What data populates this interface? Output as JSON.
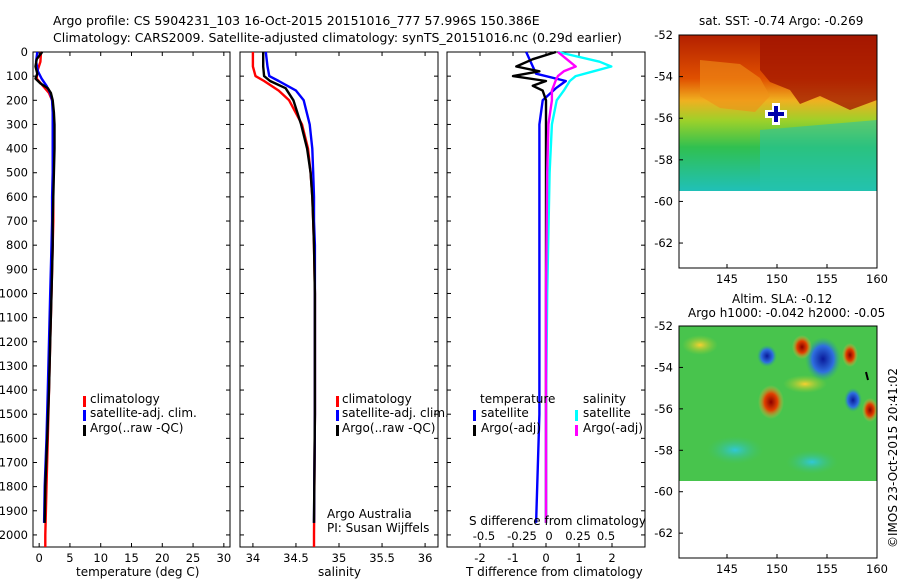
{
  "header": {
    "line1": "Argo profile: CS 5904231_103 16-Oct-2015 20151016_777 57.996S 150.386E",
    "line2": "Climatology: CARS2009. Satellite-adjusted climatology: synTS_20151016.nc (0.29d earlier)"
  },
  "colors": {
    "climatology": "#ff0000",
    "satellite": "#0000ff",
    "argo": "#000000",
    "satellite_salinity": "#00ffff",
    "argo_adj_salinity": "#ff00ff"
  },
  "depth_ticks": [
    "0",
    "100",
    "200",
    "300",
    "400",
    "500",
    "600",
    "700",
    "800",
    "900",
    "1000",
    "1100",
    "1200",
    "1300",
    "1400",
    "1500",
    "1600",
    "1700",
    "1800",
    "1900",
    "2000"
  ],
  "panels": {
    "temperature": {
      "xlabel": "temperature (deg C)",
      "xticks": [
        "0",
        "5",
        "10",
        "15",
        "20",
        "25",
        "30"
      ],
      "legend": [
        "climatology",
        "satellite-adj. clim.",
        "Argo(..raw -QC)"
      ]
    },
    "salinity": {
      "xlabel": "salinity",
      "xticks": [
        "34",
        "34.5",
        "35",
        "35.5",
        "36"
      ],
      "legend": [
        "climatology",
        "satellite-adj. clim.",
        "Argo(..raw -QC)"
      ],
      "note1": "Argo Australia",
      "note2": "PI: Susan Wijffels"
    },
    "difference": {
      "xlabel": "T difference from climatology",
      "top_label": "S difference from climatology",
      "xticks": [
        "-2",
        "-1",
        "0",
        "1",
        "2"
      ],
      "s_ticks": [
        "-0.5",
        "-0.25",
        "0",
        "0.25",
        "0.5"
      ],
      "legend_head_t": "temperature",
      "legend_head_s": "salinity",
      "legend_t": [
        "satellite",
        "Argo(-adj)"
      ],
      "legend_s": [
        "satellite",
        "Argo(-adj)"
      ]
    },
    "sst_map": {
      "title": "sat. SST: -0.74 Argo: -0.269",
      "yticks": [
        "-52",
        "-54",
        "-56",
        "-58",
        "-60",
        "-62"
      ],
      "xticks": [
        "145",
        "150",
        "155",
        "160"
      ]
    },
    "sla_map": {
      "title1": "Altim. SLA: -0.12",
      "title2": "Argo h1000: -0.042 h2000: -0.05",
      "yticks": [
        "-52",
        "-54",
        "-56",
        "-58",
        "-60",
        "-62"
      ],
      "xticks": [
        "145",
        "150",
        "155",
        "160"
      ]
    }
  },
  "watermark": "©IMOS 23-Oct-2015 20:41:02",
  "chart_data": [
    {
      "type": "line",
      "title": "",
      "xlabel": "temperature (deg C)",
      "ylabel": "",
      "xlim": [
        -1,
        31
      ],
      "ylim": [
        2050,
        0
      ],
      "series": [
        {
          "name": "climatology",
          "y": [
            0,
            40,
            80,
            110,
            140,
            170,
            200,
            250,
            300,
            400,
            500,
            600,
            700,
            800,
            1000,
            1200,
            1400,
            1600,
            1800,
            2000,
            2050
          ],
          "x": [
            0.3,
            0.2,
            -0.3,
            -0.4,
            0.6,
            1.6,
            2.1,
            2.3,
            2.4,
            2.4,
            2.3,
            2.3,
            2.3,
            2.2,
            2.0,
            1.8,
            1.6,
            1.4,
            1.2,
            1.0,
            1.0
          ]
        },
        {
          "name": "satellite-adj. clim.",
          "y": [
            0,
            40,
            80,
            110,
            140,
            170,
            200,
            250,
            300,
            400,
            500,
            600,
            700,
            800,
            1000,
            1200,
            1400,
            1600,
            1800,
            1950
          ],
          "x": [
            -0.3,
            -0.5,
            -0.2,
            0.4,
            1.2,
            1.8,
            2.1,
            2.2,
            2.2,
            2.2,
            2.2,
            2.1,
            2.1,
            2.0,
            1.8,
            1.6,
            1.4,
            1.2,
            0.9,
            0.8
          ]
        },
        {
          "name": "Argo(..raw -QC)",
          "y": [
            0,
            30,
            60,
            90,
            110,
            130,
            150,
            170,
            200,
            250,
            300,
            400,
            500,
            600,
            700,
            800,
            1000,
            1200,
            1400,
            1600,
            1800,
            1950
          ],
          "x": [
            0.5,
            -0.4,
            -0.6,
            -0.3,
            -0.6,
            0.2,
            1.4,
            1.9,
            2.2,
            2.4,
            2.5,
            2.5,
            2.4,
            2.3,
            2.2,
            2.2,
            2.0,
            1.8,
            1.6,
            1.3,
            1.0,
            0.9
          ]
        }
      ]
    },
    {
      "type": "line",
      "title": "",
      "xlabel": "salinity",
      "ylabel": "",
      "xlim": [
        33.85,
        36.15
      ],
      "ylim": [
        2050,
        0
      ],
      "series": [
        {
          "name": "climatology",
          "y": [
            0,
            60,
            100,
            120,
            160,
            200,
            300,
            400,
            500,
            600,
            700,
            800,
            1000,
            1500,
            2000,
            2050
          ],
          "x": [
            34.0,
            34.0,
            34.03,
            34.13,
            34.3,
            34.42,
            34.57,
            34.64,
            34.67,
            34.69,
            34.7,
            34.71,
            34.72,
            34.72,
            34.71,
            34.71
          ]
        },
        {
          "name": "satellite-adj. clim.",
          "y": [
            0,
            60,
            100,
            120,
            160,
            200,
            300,
            400,
            500,
            600,
            700,
            800,
            1000,
            1500,
            1950
          ],
          "x": [
            34.15,
            34.17,
            34.19,
            34.3,
            34.5,
            34.59,
            34.66,
            34.69,
            34.7,
            34.71,
            34.71,
            34.72,
            34.72,
            34.72,
            34.71
          ]
        },
        {
          "name": "Argo(..raw -QC)",
          "y": [
            0,
            60,
            100,
            120,
            150,
            200,
            300,
            400,
            500,
            600,
            700,
            800,
            1000,
            1500,
            1950
          ],
          "x": [
            34.12,
            34.12,
            34.13,
            34.2,
            34.38,
            34.47,
            34.56,
            34.63,
            34.67,
            34.69,
            34.7,
            34.71,
            34.72,
            34.72,
            34.71
          ]
        }
      ]
    },
    {
      "type": "line",
      "title": "",
      "xlabel": "T difference from climatology",
      "ylabel": "",
      "xlim": [
        -3,
        3
      ],
      "ylim": [
        2050,
        0
      ],
      "series": [
        {
          "name": "satellite (temperature)",
          "y": [
            0,
            60,
            90,
            120,
            150,
            200,
            300,
            500,
            1000,
            1500,
            1950
          ],
          "x": [
            -0.6,
            -0.4,
            -0.3,
            0.6,
            0.3,
            -0.1,
            -0.2,
            -0.2,
            -0.2,
            -0.2,
            -0.3
          ]
        },
        {
          "name": "Argo(-adj) (temperature)",
          "y": [
            0,
            30,
            60,
            80,
            100,
            120,
            140,
            160,
            200,
            300,
            500,
            1000,
            1500,
            1950
          ],
          "x": [
            0.3,
            -0.4,
            -0.9,
            -0.2,
            -1.0,
            0.0,
            -0.4,
            -0.1,
            0.0,
            0.0,
            0.0,
            0.0,
            0.0,
            0.0
          ]
        },
        {
          "name": "satellite (salinity)",
          "y": [
            0,
            40,
            60,
            80,
            100,
            120,
            160,
            200,
            300,
            500,
            1000,
            1500,
            1950
          ],
          "x": [
            0.1,
            0.45,
            0.55,
            0.4,
            0.25,
            0.2,
            0.15,
            0.09,
            0.05,
            0.03,
            0.01,
            0.0,
            0.0
          ]
        },
        {
          "name": "Argo(-adj) (salinity)",
          "y": [
            0,
            40,
            60,
            80,
            100,
            120,
            160,
            200,
            300,
            500,
            1000,
            1500,
            1950
          ],
          "x": [
            0.1,
            0.2,
            0.25,
            0.15,
            0.1,
            0.08,
            0.05,
            0.05,
            0.02,
            0.01,
            0.0,
            0.0,
            0.0
          ]
        }
      ]
    }
  ]
}
